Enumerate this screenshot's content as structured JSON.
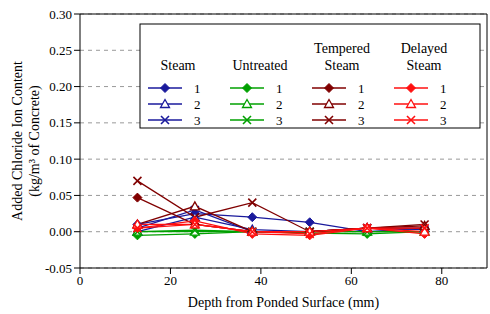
{
  "chart_data": {
    "type": "line",
    "x_label": "Depth from Ponded Surface (mm)",
    "y_label": [
      "Added Chloride Ion Content",
      "(kg/m³ of Concrete)"
    ],
    "x": [
      12.7,
      25.4,
      38.1,
      50.8,
      63.5,
      76.2
    ],
    "xlim": [
      0,
      90
    ],
    "xticks": [
      0,
      20,
      40,
      60,
      80
    ],
    "ylim": [
      -0.05,
      0.3
    ],
    "yticks": [
      -0.05,
      {
        "value": 0,
        "label": "0.00"
      },
      0.05,
      {
        "value": 0.1,
        "label": "0.10"
      },
      0.15,
      {
        "value": 0.2,
        "label": "0.20"
      },
      0.25,
      {
        "value": 0.3,
        "label": "0.30"
      }
    ],
    "grid": true,
    "legend": "upper right",
    "series": [
      {
        "name": "1",
        "group": "Steam",
        "color": "#1a1a9c",
        "marker": "diamond",
        "values": [
          0.01,
          0.025,
          0.02,
          0.013,
          0.0,
          0.005
        ]
      },
      {
        "name": "2",
        "group": "Steam",
        "color": "#1a1a9c",
        "marker": "triangle",
        "values": [
          0.0,
          0.02,
          0.003,
          0.0,
          0.005,
          0.005
        ]
      },
      {
        "name": "3",
        "group": "Steam",
        "color": "#1a1a9c",
        "marker": "x",
        "values": [
          0.005,
          0.03,
          0.0,
          0.0,
          0.005,
          0.003
        ]
      },
      {
        "name": "1",
        "group": "Untreated",
        "color": "#00a000",
        "marker": "diamond",
        "values": [
          -0.005,
          -0.003,
          0.0,
          -0.002,
          -0.003,
          0.0
        ]
      },
      {
        "name": "2",
        "group": "Untreated",
        "color": "#00a000",
        "marker": "triangle",
        "values": [
          0.0,
          0.0,
          0.0,
          0.0,
          0.0,
          0.0
        ]
      },
      {
        "name": "3",
        "group": "Untreated",
        "color": "#00a000",
        "marker": "x",
        "values": [
          0.0,
          0.002,
          0.0,
          0.0,
          0.0,
          0.0
        ]
      },
      {
        "name": "1",
        "group": "Tempered Steam",
        "color": "#800000",
        "marker": "diamond",
        "values": [
          0.047,
          0.01,
          0.0,
          0.0,
          0.005,
          0.005
        ]
      },
      {
        "name": "2",
        "group": "Tempered Steam",
        "color": "#800000",
        "marker": "triangle",
        "values": [
          0.01,
          0.035,
          0.0,
          0.0,
          0.005,
          0.008
        ]
      },
      {
        "name": "3",
        "group": "Tempered Steam",
        "color": "#800000",
        "marker": "x",
        "values": [
          0.07,
          0.02,
          0.04,
          0.0,
          0.005,
          0.01
        ]
      },
      {
        "name": "1",
        "group": "Delayed Steam",
        "color": "#ff1010",
        "marker": "diamond",
        "values": [
          0.005,
          0.015,
          -0.003,
          -0.005,
          0.005,
          -0.003
        ]
      },
      {
        "name": "2",
        "group": "Delayed Steam",
        "color": "#ff1010",
        "marker": "triangle",
        "values": [
          0.01,
          0.01,
          0.0,
          0.0,
          0.005,
          0.0
        ]
      },
      {
        "name": "3",
        "group": "Delayed Steam",
        "color": "#ff1010",
        "marker": "x",
        "values": [
          0.005,
          0.01,
          0.0,
          -0.003,
          0.005,
          0.005
        ]
      }
    ]
  }
}
